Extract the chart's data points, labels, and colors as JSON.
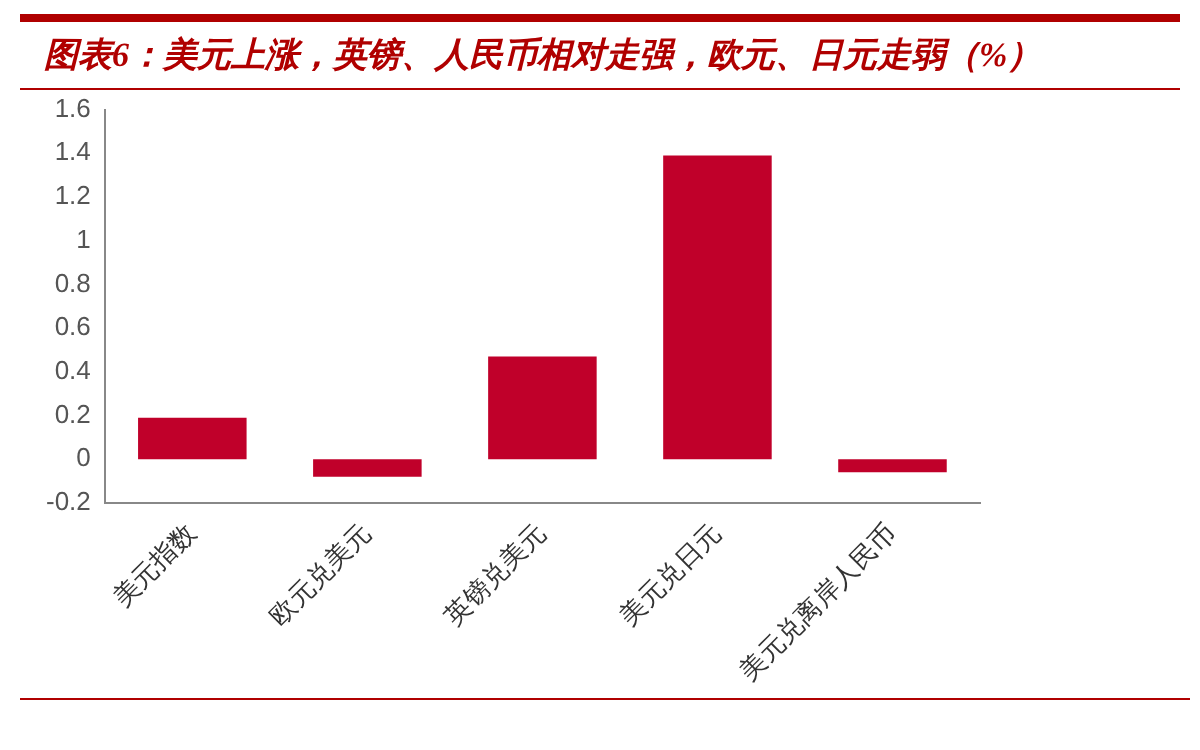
{
  "chart_data": {
    "type": "bar",
    "title": "图表6：美元上涨，英镑、人民币相对走强，欧元、日元走弱（%）",
    "categories": [
      "美元指数",
      "欧元兑美元",
      "英镑兑美元",
      "美元兑日元",
      "美元兑离岸人民币"
    ],
    "values": [
      0.19,
      -0.08,
      0.47,
      1.39,
      -0.06
    ],
    "color": "#c0002a",
    "ylim": [
      -0.2,
      1.6
    ],
    "yticks": [
      -0.2,
      0,
      0.2,
      0.4,
      0.6,
      0.8,
      1,
      1.2,
      1.4,
      1.6
    ],
    "grid": false,
    "legend": false
  }
}
